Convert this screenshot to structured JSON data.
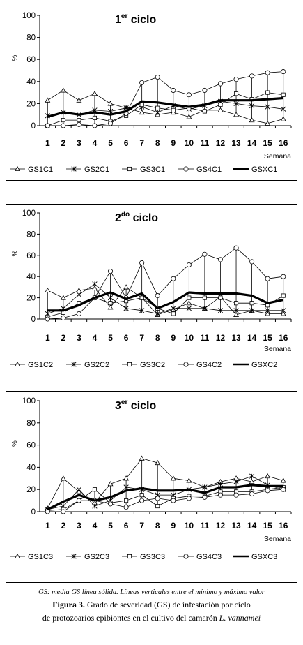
{
  "charts": [
    {
      "title_main": "1",
      "title_sup": "er",
      "title_rest": " ciclo",
      "legend": [
        "GS1C1",
        "GS2C1",
        "GS3C1",
        "GS4C1",
        "GSXC1"
      ]
    },
    {
      "title_main": "2",
      "title_sup": "do",
      "title_rest": " ciclo",
      "legend": [
        "GS1C2",
        "GS2C2",
        "GS3C2",
        "GS4C2",
        "GSXC2"
      ]
    },
    {
      "title_main": "3",
      "title_sup": "er",
      "title_rest": " ciclo",
      "legend": [
        "GS1C3",
        "GS2C3",
        "GS3C3",
        "GS4C3",
        "GSXC3"
      ]
    }
  ],
  "caption": {
    "note": "GS: media GS línea sólida. Líneas verticales entre el mínimo y máximo valor",
    "figure_label": "Figura 3.",
    "figure_text": " Grado de severidad (GS) de infestación por ciclo",
    "line2_text": "de protozoarios epibiontes en el cultivo del camarón ",
    "line2_species": "L. vannamei"
  },
  "chart_data": [
    {
      "type": "line",
      "title": "1er ciclo",
      "xlabel": "Semana",
      "ylabel": "%",
      "x": [
        1,
        2,
        3,
        4,
        5,
        6,
        7,
        8,
        9,
        10,
        11,
        12,
        13,
        14,
        15,
        16
      ],
      "ylim": [
        0,
        100
      ],
      "yticks": [
        0,
        20,
        40,
        60,
        80,
        100
      ],
      "grid": false,
      "legend_position": "bottom",
      "series": [
        {
          "name": "GS1C1",
          "marker": "triangle",
          "values": [
            23,
            32,
            23,
            29,
            20,
            16,
            12,
            10,
            12,
            8,
            14,
            14,
            10,
            5,
            2,
            6
          ]
        },
        {
          "name": "GS2C1",
          "marker": "x",
          "values": [
            9,
            12,
            10,
            14,
            13,
            16,
            17,
            12,
            18,
            15,
            18,
            22,
            20,
            18,
            17,
            15
          ]
        },
        {
          "name": "GS3C1",
          "marker": "square",
          "values": [
            0,
            5,
            5,
            7,
            4,
            9,
            19,
            16,
            14,
            16,
            13,
            19,
            29,
            24,
            30,
            28
          ]
        },
        {
          "name": "GS4C1",
          "marker": "circle",
          "values": [
            0,
            0,
            1,
            0,
            2,
            11,
            39,
            44,
            32,
            28,
            32,
            38,
            42,
            45,
            48,
            49
          ]
        },
        {
          "name": "GSXC1",
          "marker": "none",
          "values": [
            8,
            12,
            10,
            12,
            10,
            13,
            22,
            21,
            19,
            17,
            19,
            23,
            23,
            23,
            24,
            25
          ]
        }
      ]
    },
    {
      "type": "line",
      "title": "2do ciclo",
      "xlabel": "Semana",
      "ylabel": "%",
      "x": [
        1,
        2,
        3,
        4,
        5,
        6,
        7,
        8,
        9,
        10,
        11,
        12,
        13,
        14,
        15,
        16
      ],
      "ylim": [
        0,
        100
      ],
      "yticks": [
        0,
        20,
        40,
        60,
        80,
        100
      ],
      "grid": false,
      "legend_position": "bottom",
      "series": [
        {
          "name": "GS1C2",
          "marker": "triangle",
          "values": [
            27,
            20,
            27,
            29,
            11,
            30,
            20,
            4,
            9,
            15,
            10,
            21,
            4,
            8,
            5,
            5
          ]
        },
        {
          "name": "GS2C2",
          "marker": "x",
          "values": [
            5,
            10,
            23,
            33,
            20,
            10,
            8,
            5,
            10,
            10,
            10,
            8,
            8,
            8,
            8,
            8
          ]
        },
        {
          "name": "GS3C2",
          "marker": "square",
          "values": [
            2,
            6,
            15,
            20,
            15,
            17,
            20,
            10,
            5,
            20,
            20,
            20,
            15,
            15,
            13,
            22
          ]
        },
        {
          "name": "GS4C2",
          "marker": "circle",
          "values": [
            0,
            1,
            5,
            20,
            45,
            20,
            53,
            22,
            38,
            51,
            61,
            56,
            67,
            54,
            38,
            40
          ]
        },
        {
          "name": "GSXC2",
          "marker": "none",
          "values": [
            8,
            8,
            13,
            20,
            25,
            19,
            24,
            10,
            16,
            25,
            24,
            24,
            24,
            22,
            15,
            18
          ]
        }
      ]
    },
    {
      "type": "line",
      "title": "3er ciclo",
      "xlabel": "Semana",
      "ylabel": "%",
      "x": [
        1,
        2,
        3,
        4,
        5,
        6,
        7,
        8,
        9,
        10,
        11,
        12,
        13,
        14,
        15,
        16
      ],
      "ylim": [
        0,
        100
      ],
      "yticks": [
        0,
        20,
        40,
        60,
        80,
        100
      ],
      "grid": false,
      "legend_position": "bottom",
      "series": [
        {
          "name": "GS1C3",
          "marker": "triangle",
          "values": [
            3,
            30,
            18,
            8,
            25,
            30,
            48,
            44,
            30,
            28,
            22,
            27,
            30,
            27,
            32,
            28
          ]
        },
        {
          "name": "GS2C3",
          "marker": "x",
          "values": [
            2,
            5,
            20,
            5,
            10,
            22,
            20,
            15,
            15,
            20,
            22,
            25,
            27,
            32,
            24,
            20
          ]
        },
        {
          "name": "GS3C3",
          "marker": "square",
          "values": [
            1,
            2,
            10,
            20,
            8,
            10,
            15,
            5,
            12,
            14,
            14,
            18,
            18,
            18,
            20,
            22
          ]
        },
        {
          "name": "GS4C3",
          "marker": "circle",
          "values": [
            0,
            0,
            10,
            10,
            7,
            4,
            10,
            12,
            10,
            12,
            13,
            15,
            15,
            16,
            19,
            20
          ]
        },
        {
          "name": "GSXC3",
          "marker": "none",
          "values": [
            2,
            9,
            15,
            10,
            13,
            19,
            21,
            19,
            19,
            20,
            17,
            22,
            22,
            24,
            23,
            23
          ]
        }
      ]
    }
  ]
}
